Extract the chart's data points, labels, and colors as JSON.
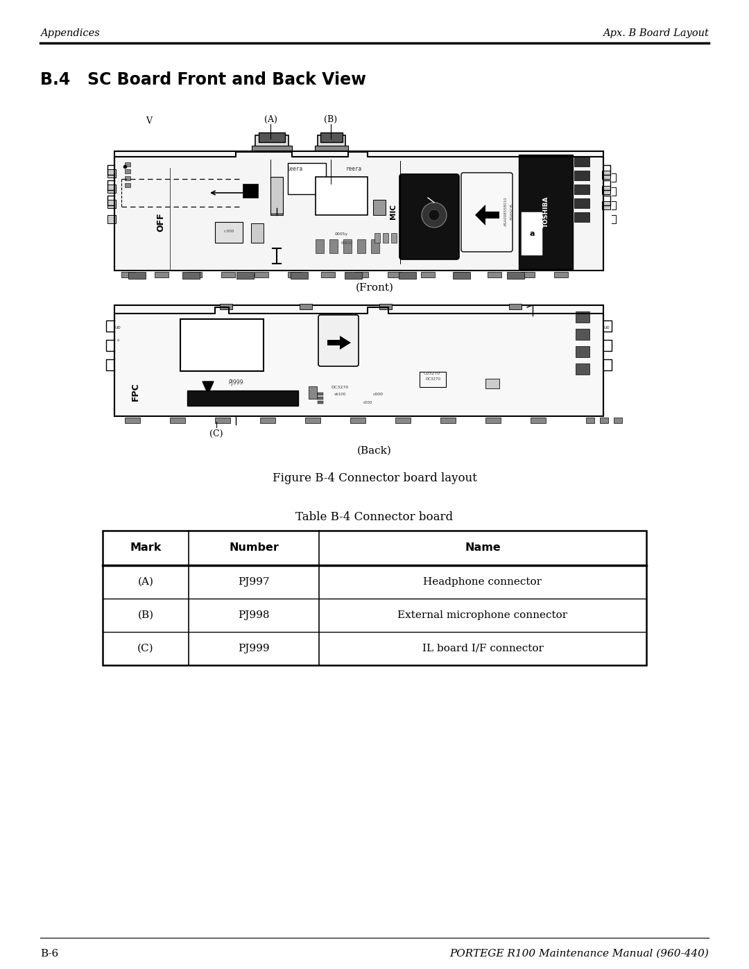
{
  "header_left": "Appendices",
  "header_right": "Apx. B Board Layout",
  "section_title": "B.4   SC Board Front and Back View",
  "label_V": "V",
  "label_A": "(A)",
  "label_B": "(B)",
  "label_C": "(C)",
  "caption_front": "(Front)",
  "caption_back": "(Back)",
  "figure_caption": "Figure B-4 Connector board layout",
  "table_title": "Table B-4 Connector board",
  "table_headers": [
    "Mark",
    "Number",
    "Name"
  ],
  "table_rows": [
    [
      "(A)",
      "PJ997",
      "Headphone connector"
    ],
    [
      "(B)",
      "PJ998",
      "External microphone connector"
    ],
    [
      "(C)",
      "PJ999",
      "IL board I/F connector"
    ]
  ],
  "footer_left": "B-6",
  "footer_right": "PORTEGE R100 Maintenance Manual (960-440)",
  "bg_color": "#ffffff"
}
